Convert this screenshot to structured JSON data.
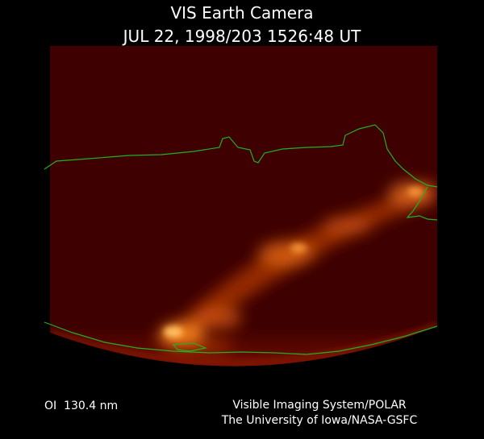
{
  "header": {
    "title": "VIS Earth Camera",
    "timestamp": "JUL 22, 1998/203 1526:48 UT"
  },
  "footer": {
    "filter": "OI  130.4 nm",
    "credit": [
      "Visible Imaging System/POLAR",
      "The University of Iowa/NASA-GSFC"
    ]
  }
}
